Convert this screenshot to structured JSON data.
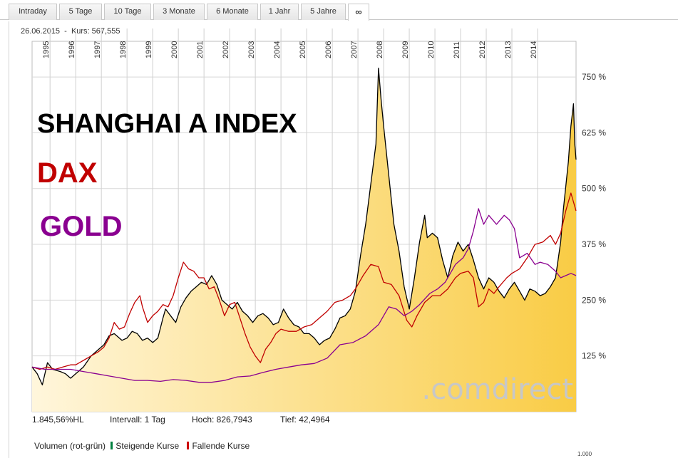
{
  "tabs": [
    {
      "label": "Intraday",
      "active": false
    },
    {
      "label": "5 Tage",
      "active": false
    },
    {
      "label": "10 Tage",
      "active": false
    },
    {
      "label": "3 Monate",
      "active": false
    },
    {
      "label": "6 Monate",
      "active": false
    },
    {
      "label": "1 Jahr",
      "active": false
    },
    {
      "label": "5 Jahre",
      "active": false
    },
    {
      "label": "∞",
      "active": true
    }
  ],
  "info_line": "26.06.2015  -  Kurs: 567,555",
  "stats": {
    "change": "1.845,56%HL",
    "interval": "Intervall: 1 Tag",
    "high": "Hoch: 826,7943",
    "low": "Tief: 42,4964"
  },
  "volume_row": {
    "label": "Volumen (rot-grün)",
    "rising": "Steigende Kurse",
    "falling": "Fallende Kurse",
    "rising_color": "#008040",
    "falling_color": "#cc0000"
  },
  "volume_axis_label": "1.000",
  "colors": {
    "area_fill_top": "#f9cc45",
    "area_fill_bottom": "#fff6dc",
    "shanghai": "#000000",
    "dax": "#c00000",
    "gold": "#8a0090",
    "watermark": "#c7c7c7"
  },
  "chart_data": {
    "type": "line",
    "annotations": [
      {
        "text": "SHANGHAI A INDEX",
        "color": "#000000"
      },
      {
        "text": "DAX",
        "color": "#c00000"
      },
      {
        "text": "GOLD",
        "color": "#8a0090"
      }
    ],
    "watermark": ".comdirect",
    "x_tick_labels": [
      "1995",
      "1996",
      "1997",
      "1998",
      "1999",
      "2000",
      "2001",
      "2002",
      "2003",
      "2004",
      "2005",
      "2006",
      "2007",
      "2008",
      "2009",
      "2010",
      "2011",
      "2012",
      "2013",
      "2014"
    ],
    "x_range": [
      1994.3,
      2015.5
    ],
    "y_tick_labels": [
      "750 %",
      "625 %",
      "500 %",
      "375 %",
      "250 %",
      "125 %"
    ],
    "y_ticks": [
      750,
      625,
      500,
      375,
      250,
      125
    ],
    "ylim": [
      0,
      830
    ],
    "axis_position": "right",
    "grid": true,
    "series": [
      {
        "color": "#000000",
        "area": true,
        "points": [
          [
            1994.3,
            100
          ],
          [
            1994.5,
            85
          ],
          [
            1994.7,
            60
          ],
          [
            1994.9,
            110
          ],
          [
            1995.1,
            95
          ],
          [
            1995.4,
            90
          ],
          [
            1995.6,
            85
          ],
          [
            1995.8,
            75
          ],
          [
            1996.0,
            85
          ],
          [
            1996.3,
            100
          ],
          [
            1996.6,
            125
          ],
          [
            1996.9,
            140
          ],
          [
            1997.1,
            150
          ],
          [
            1997.3,
            170
          ],
          [
            1997.5,
            175
          ],
          [
            1997.8,
            160
          ],
          [
            1998.0,
            165
          ],
          [
            1998.2,
            180
          ],
          [
            1998.4,
            175
          ],
          [
            1998.6,
            160
          ],
          [
            1998.8,
            165
          ],
          [
            1999.0,
            155
          ],
          [
            1999.2,
            165
          ],
          [
            1999.4,
            210
          ],
          [
            1999.5,
            230
          ],
          [
            1999.7,
            215
          ],
          [
            1999.9,
            200
          ],
          [
            2000.1,
            235
          ],
          [
            2000.3,
            255
          ],
          [
            2000.5,
            270
          ],
          [
            2000.7,
            280
          ],
          [
            2000.9,
            290
          ],
          [
            2001.1,
            285
          ],
          [
            2001.3,
            305
          ],
          [
            2001.5,
            285
          ],
          [
            2001.7,
            250
          ],
          [
            2001.9,
            240
          ],
          [
            2002.1,
            230
          ],
          [
            2002.3,
            245
          ],
          [
            2002.5,
            225
          ],
          [
            2002.7,
            215
          ],
          [
            2002.9,
            200
          ],
          [
            2003.1,
            215
          ],
          [
            2003.3,
            220
          ],
          [
            2003.5,
            210
          ],
          [
            2003.7,
            195
          ],
          [
            2003.9,
            200
          ],
          [
            2004.1,
            230
          ],
          [
            2004.3,
            210
          ],
          [
            2004.5,
            195
          ],
          [
            2004.7,
            190
          ],
          [
            2004.9,
            175
          ],
          [
            2005.1,
            175
          ],
          [
            2005.3,
            165
          ],
          [
            2005.5,
            150
          ],
          [
            2005.7,
            160
          ],
          [
            2005.9,
            165
          ],
          [
            2006.1,
            185
          ],
          [
            2006.3,
            210
          ],
          [
            2006.5,
            215
          ],
          [
            2006.7,
            230
          ],
          [
            2006.9,
            270
          ],
          [
            2007.1,
            350
          ],
          [
            2007.3,
            420
          ],
          [
            2007.5,
            510
          ],
          [
            2007.7,
            600
          ],
          [
            2007.8,
            770
          ],
          [
            2007.9,
            700
          ],
          [
            2008.0,
            640
          ],
          [
            2008.2,
            530
          ],
          [
            2008.4,
            420
          ],
          [
            2008.6,
            360
          ],
          [
            2008.8,
            280
          ],
          [
            2009.0,
            230
          ],
          [
            2009.2,
            300
          ],
          [
            2009.4,
            380
          ],
          [
            2009.6,
            440
          ],
          [
            2009.7,
            390
          ],
          [
            2009.9,
            400
          ],
          [
            2010.1,
            390
          ],
          [
            2010.3,
            340
          ],
          [
            2010.5,
            300
          ],
          [
            2010.7,
            350
          ],
          [
            2010.9,
            380
          ],
          [
            2011.1,
            360
          ],
          [
            2011.3,
            375
          ],
          [
            2011.5,
            340
          ],
          [
            2011.7,
            300
          ],
          [
            2011.9,
            275
          ],
          [
            2012.1,
            300
          ],
          [
            2012.3,
            290
          ],
          [
            2012.5,
            270
          ],
          [
            2012.7,
            255
          ],
          [
            2012.9,
            275
          ],
          [
            2013.1,
            290
          ],
          [
            2013.3,
            270
          ],
          [
            2013.5,
            250
          ],
          [
            2013.7,
            275
          ],
          [
            2013.9,
            270
          ],
          [
            2014.1,
            260
          ],
          [
            2014.3,
            265
          ],
          [
            2014.5,
            280
          ],
          [
            2014.7,
            300
          ],
          [
            2014.9,
            380
          ],
          [
            2015.0,
            450
          ],
          [
            2015.2,
            560
          ],
          [
            2015.3,
            640
          ],
          [
            2015.4,
            690
          ],
          [
            2015.45,
            600
          ],
          [
            2015.5,
            565
          ]
        ]
      },
      {
        "color": "#c00000",
        "area": false,
        "points": [
          [
            1994.3,
            100
          ],
          [
            1994.6,
            95
          ],
          [
            1994.9,
            100
          ],
          [
            1995.2,
            95
          ],
          [
            1995.5,
            100
          ],
          [
            1995.8,
            105
          ],
          [
            1996.0,
            105
          ],
          [
            1996.3,
            115
          ],
          [
            1996.6,
            125
          ],
          [
            1996.9,
            135
          ],
          [
            1997.1,
            145
          ],
          [
            1997.3,
            165
          ],
          [
            1997.5,
            200
          ],
          [
            1997.7,
            185
          ],
          [
            1997.9,
            190
          ],
          [
            1998.1,
            220
          ],
          [
            1998.3,
            245
          ],
          [
            1998.5,
            260
          ],
          [
            1998.6,
            235
          ],
          [
            1998.8,
            200
          ],
          [
            1999.0,
            215
          ],
          [
            1999.2,
            225
          ],
          [
            1999.4,
            240
          ],
          [
            1999.6,
            235
          ],
          [
            1999.8,
            260
          ],
          [
            2000.0,
            300
          ],
          [
            2000.2,
            335
          ],
          [
            2000.4,
            320
          ],
          [
            2000.6,
            315
          ],
          [
            2000.8,
            300
          ],
          [
            2001.0,
            300
          ],
          [
            2001.2,
            275
          ],
          [
            2001.4,
            280
          ],
          [
            2001.6,
            250
          ],
          [
            2001.8,
            215
          ],
          [
            2002.0,
            240
          ],
          [
            2002.2,
            245
          ],
          [
            2002.4,
            210
          ],
          [
            2002.6,
            175
          ],
          [
            2002.8,
            145
          ],
          [
            2003.0,
            125
          ],
          [
            2003.2,
            110
          ],
          [
            2003.4,
            140
          ],
          [
            2003.6,
            155
          ],
          [
            2003.8,
            175
          ],
          [
            2004.0,
            185
          ],
          [
            2004.3,
            180
          ],
          [
            2004.6,
            180
          ],
          [
            2004.9,
            190
          ],
          [
            2005.2,
            195
          ],
          [
            2005.5,
            210
          ],
          [
            2005.8,
            225
          ],
          [
            2006.1,
            245
          ],
          [
            2006.4,
            250
          ],
          [
            2006.7,
            260
          ],
          [
            2006.9,
            275
          ],
          [
            2007.2,
            305
          ],
          [
            2007.5,
            330
          ],
          [
            2007.8,
            325
          ],
          [
            2008.0,
            290
          ],
          [
            2008.3,
            285
          ],
          [
            2008.6,
            260
          ],
          [
            2008.9,
            205
          ],
          [
            2009.1,
            190
          ],
          [
            2009.3,
            215
          ],
          [
            2009.6,
            245
          ],
          [
            2009.9,
            260
          ],
          [
            2010.2,
            260
          ],
          [
            2010.5,
            275
          ],
          [
            2010.8,
            300
          ],
          [
            2011.0,
            310
          ],
          [
            2011.3,
            315
          ],
          [
            2011.5,
            300
          ],
          [
            2011.7,
            235
          ],
          [
            2011.9,
            245
          ],
          [
            2012.1,
            275
          ],
          [
            2012.3,
            265
          ],
          [
            2012.5,
            280
          ],
          [
            2012.8,
            300
          ],
          [
            2013.0,
            310
          ],
          [
            2013.3,
            320
          ],
          [
            2013.6,
            345
          ],
          [
            2013.9,
            375
          ],
          [
            2014.2,
            380
          ],
          [
            2014.5,
            395
          ],
          [
            2014.7,
            375
          ],
          [
            2014.9,
            400
          ],
          [
            2015.1,
            450
          ],
          [
            2015.3,
            490
          ],
          [
            2015.4,
            470
          ],
          [
            2015.5,
            450
          ]
        ]
      },
      {
        "color": "#8a0090",
        "area": false,
        "points": [
          [
            1994.3,
            100
          ],
          [
            1994.8,
            95
          ],
          [
            1995.3,
            95
          ],
          [
            1995.8,
            95
          ],
          [
            1996.3,
            90
          ],
          [
            1996.8,
            85
          ],
          [
            1997.3,
            80
          ],
          [
            1997.8,
            75
          ],
          [
            1998.3,
            70
          ],
          [
            1998.8,
            70
          ],
          [
            1999.3,
            68
          ],
          [
            1999.8,
            72
          ],
          [
            2000.3,
            70
          ],
          [
            2000.8,
            66
          ],
          [
            2001.3,
            66
          ],
          [
            2001.8,
            70
          ],
          [
            2002.3,
            78
          ],
          [
            2002.8,
            80
          ],
          [
            2003.3,
            88
          ],
          [
            2003.8,
            95
          ],
          [
            2004.3,
            100
          ],
          [
            2004.8,
            105
          ],
          [
            2005.3,
            108
          ],
          [
            2005.8,
            120
          ],
          [
            2006.3,
            150
          ],
          [
            2006.8,
            155
          ],
          [
            2007.3,
            170
          ],
          [
            2007.8,
            195
          ],
          [
            2008.2,
            235
          ],
          [
            2008.5,
            230
          ],
          [
            2008.8,
            215
          ],
          [
            2009.1,
            225
          ],
          [
            2009.4,
            240
          ],
          [
            2009.8,
            265
          ],
          [
            2010.1,
            275
          ],
          [
            2010.4,
            290
          ],
          [
            2010.8,
            330
          ],
          [
            2011.1,
            345
          ],
          [
            2011.3,
            365
          ],
          [
            2011.5,
            405
          ],
          [
            2011.7,
            455
          ],
          [
            2011.9,
            420
          ],
          [
            2012.1,
            440
          ],
          [
            2012.4,
            420
          ],
          [
            2012.7,
            440
          ],
          [
            2012.9,
            430
          ],
          [
            2013.1,
            410
          ],
          [
            2013.3,
            345
          ],
          [
            2013.6,
            355
          ],
          [
            2013.9,
            330
          ],
          [
            2014.1,
            335
          ],
          [
            2014.4,
            330
          ],
          [
            2014.7,
            315
          ],
          [
            2014.9,
            300
          ],
          [
            2015.1,
            305
          ],
          [
            2015.3,
            310
          ],
          [
            2015.5,
            305
          ]
        ]
      }
    ]
  }
}
